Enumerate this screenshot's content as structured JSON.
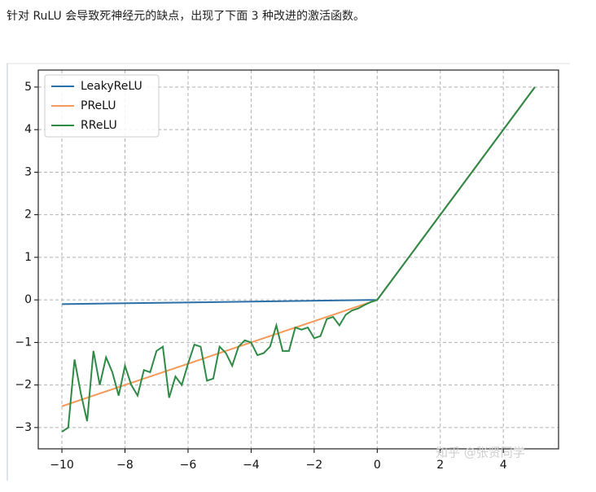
{
  "caption": "针对 RuLU 会导致死神经元的缺点，出现了下面 3 种改进的激活函数。",
  "watermark": "知乎 @张贤同学",
  "chart_data": {
    "type": "line",
    "xlim": [
      -10.75,
      5.75
    ],
    "ylim": [
      -3.5,
      5.4
    ],
    "xticks": [
      {
        "value": -10,
        "label": "−10"
      },
      {
        "value": -8,
        "label": "−8"
      },
      {
        "value": -6,
        "label": "−6"
      },
      {
        "value": -4,
        "label": "−4"
      },
      {
        "value": -2,
        "label": "−2"
      },
      0,
      2,
      4
    ],
    "yticks": [
      {
        "value": -3,
        "label": "−3"
      },
      {
        "value": -2,
        "label": "−2"
      },
      {
        "value": -1,
        "label": "−1"
      },
      0,
      1,
      2,
      3,
      4,
      5
    ],
    "grid": true,
    "legend": "upper left",
    "series": [
      {
        "name": "LeakyReLU",
        "color": "#2b6fa8",
        "x": [
          -10,
          0,
          5
        ],
        "values": [
          -0.1,
          0,
          5
        ]
      },
      {
        "name": "PReLU",
        "color": "#f59a5a",
        "x": [
          -10,
          0,
          5
        ],
        "values": [
          -2.5,
          0,
          5
        ]
      },
      {
        "name": "RReLU",
        "color": "#2e8a45",
        "x": [
          -10,
          -9.8,
          -9.6,
          -9.4,
          -9.2,
          -9,
          -8.8,
          -8.6,
          -8.4,
          -8.2,
          -8,
          -7.8,
          -7.6,
          -7.4,
          -7.2,
          -7,
          -6.8,
          -6.6,
          -6.4,
          -6.2,
          -6,
          -5.8,
          -5.6,
          -5.4,
          -5.2,
          -5,
          -4.8,
          -4.6,
          -4.4,
          -4.2,
          -4,
          -3.8,
          -3.6,
          -3.4,
          -3.2,
          -3,
          -2.8,
          -2.6,
          -2.4,
          -2.2,
          -2,
          -1.8,
          -1.6,
          -1.4,
          -1.2,
          -1,
          -0.8,
          -0.6,
          -0.4,
          -0.2,
          0,
          5
        ],
        "values": [
          -3.1,
          -3.0,
          -1.4,
          -2.2,
          -2.85,
          -1.2,
          -2.0,
          -1.35,
          -1.7,
          -2.25,
          -1.55,
          -2.0,
          -2.25,
          -1.65,
          -1.7,
          -1.2,
          -1.1,
          -2.3,
          -1.8,
          -2.0,
          -1.5,
          -1.05,
          -1.1,
          -1.9,
          -1.85,
          -1.1,
          -1.25,
          -1.55,
          -1.1,
          -0.95,
          -1.0,
          -1.3,
          -1.25,
          -1.1,
          -0.6,
          -1.2,
          -1.2,
          -0.65,
          -0.7,
          -0.65,
          -0.9,
          -0.85,
          -0.45,
          -0.4,
          -0.6,
          -0.35,
          -0.25,
          -0.2,
          -0.12,
          -0.05,
          0,
          5
        ]
      }
    ]
  }
}
